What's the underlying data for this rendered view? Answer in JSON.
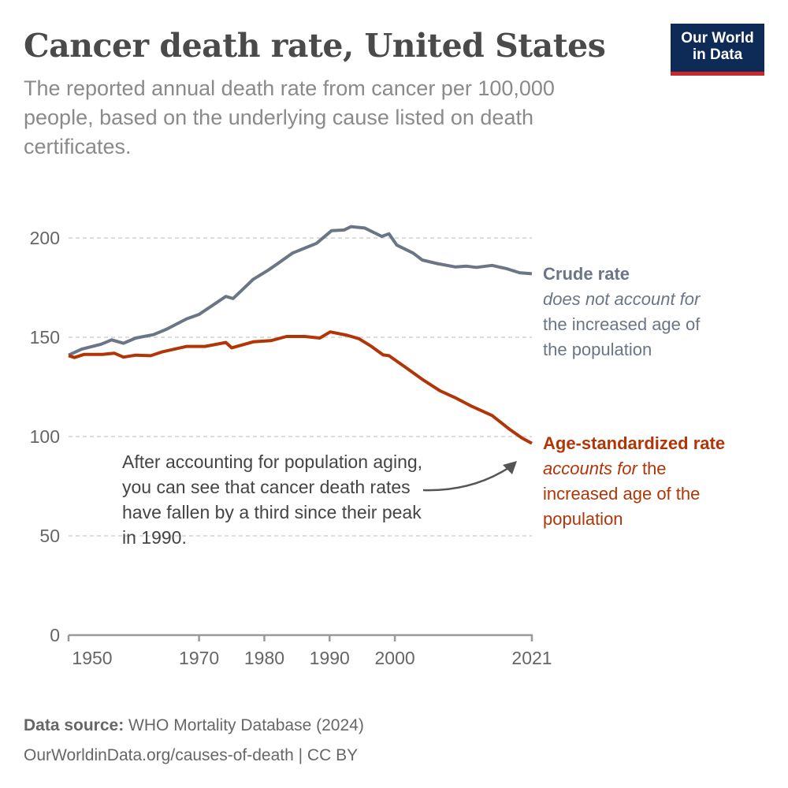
{
  "header": {
    "title": "Cancer death rate, United States",
    "subtitle": "The reported annual death rate from cancer per 100,000 people, based on the underlying cause listed on death certificates.",
    "logo_line1": "Our World",
    "logo_line2": "in Data"
  },
  "chart_data": {
    "type": "line",
    "title": "Cancer death rate, United States",
    "xlim": [
      1950,
      2021
    ],
    "ylim": [
      0,
      200
    ],
    "x_ticks": [
      1950,
      1970,
      1980,
      1990,
      2000,
      2021
    ],
    "y_ticks": [
      0,
      50,
      100,
      150,
      200
    ],
    "grid": "horizontal dotted",
    "colors": {
      "crude": "#6b7585",
      "age": "#b13507"
    },
    "series": [
      {
        "name": "Crude rate",
        "points": [
          [
            1950,
            141
          ],
          [
            1952,
            144
          ],
          [
            1955,
            146.5
          ],
          [
            1956.6,
            148.7
          ],
          [
            1958.4,
            147
          ],
          [
            1960.3,
            149.6
          ],
          [
            1963,
            151.3
          ],
          [
            1965,
            154
          ],
          [
            1968.1,
            159.3
          ],
          [
            1970,
            161.5
          ],
          [
            1972.3,
            166.6
          ],
          [
            1974.1,
            170.6
          ],
          [
            1975.2,
            169.5
          ],
          [
            1978.3,
            179.2
          ],
          [
            1980.6,
            183.8
          ],
          [
            1982,
            187
          ],
          [
            1984.3,
            192.4
          ],
          [
            1988,
            197.3
          ],
          [
            1990.3,
            203.7
          ],
          [
            1992.2,
            204
          ],
          [
            1993.3,
            205.7
          ],
          [
            1995.4,
            205
          ],
          [
            1998,
            200.8
          ],
          [
            1999.1,
            202.1
          ],
          [
            2000.3,
            196.4
          ],
          [
            2002.8,
            192.4
          ],
          [
            2004.2,
            188.9
          ],
          [
            2006.5,
            187.1
          ],
          [
            2009.3,
            185.4
          ],
          [
            2011,
            185.8
          ],
          [
            2012.5,
            185.2
          ],
          [
            2014.9,
            186.2
          ],
          [
            2017.2,
            184.5
          ],
          [
            2019.1,
            182.5
          ],
          [
            2021,
            182
          ]
        ]
      },
      {
        "name": "Age-standardized rate",
        "points": [
          [
            1950,
            140.7
          ],
          [
            1950.9,
            139.8
          ],
          [
            1952.4,
            141.4
          ],
          [
            1955.2,
            141.4
          ],
          [
            1957,
            142
          ],
          [
            1958.4,
            140
          ],
          [
            1960.3,
            141
          ],
          [
            1962.6,
            140.7
          ],
          [
            1964.4,
            142.7
          ],
          [
            1968.1,
            145.4
          ],
          [
            1970.9,
            145.4
          ],
          [
            1974.1,
            147.4
          ],
          [
            1975,
            144.7
          ],
          [
            1978.3,
            147.7
          ],
          [
            1981,
            148.3
          ],
          [
            1983.4,
            150.4
          ],
          [
            1986.2,
            150.4
          ],
          [
            1988.5,
            149.6
          ],
          [
            1990.1,
            152.7
          ],
          [
            1992.7,
            151
          ],
          [
            1994.5,
            149.3
          ],
          [
            1996.4,
            145.4
          ],
          [
            1998.2,
            141.1
          ],
          [
            1999.1,
            140.7
          ],
          [
            2001.4,
            135.4
          ],
          [
            2004.2,
            128.8
          ],
          [
            2006.9,
            123.1
          ],
          [
            2009.3,
            119.5
          ],
          [
            2011.6,
            115.5
          ],
          [
            2014.9,
            110.6
          ],
          [
            2017.6,
            103.6
          ],
          [
            2019.5,
            99.2
          ],
          [
            2021,
            96.6
          ]
        ]
      }
    ],
    "labels": {
      "crude_title": "Crude rate",
      "crude_italic": "does not account for",
      "crude_rest1": "the increased age of",
      "crude_rest2": "the population",
      "age_title": "Age-standardized rate",
      "age_italic": "accounts for",
      "age_rest0": " the",
      "age_rest1": "increased age of the",
      "age_rest2": "population"
    },
    "annotation": "After accounting for population aging, you can see that cancer death rates have fallen by a third since their peak in 1990."
  },
  "footer": {
    "source_label": "Data source:",
    "source": " WHO Mortality Database (2024)",
    "url": "OurWorldinData.org/causes-of-death | CC BY"
  }
}
